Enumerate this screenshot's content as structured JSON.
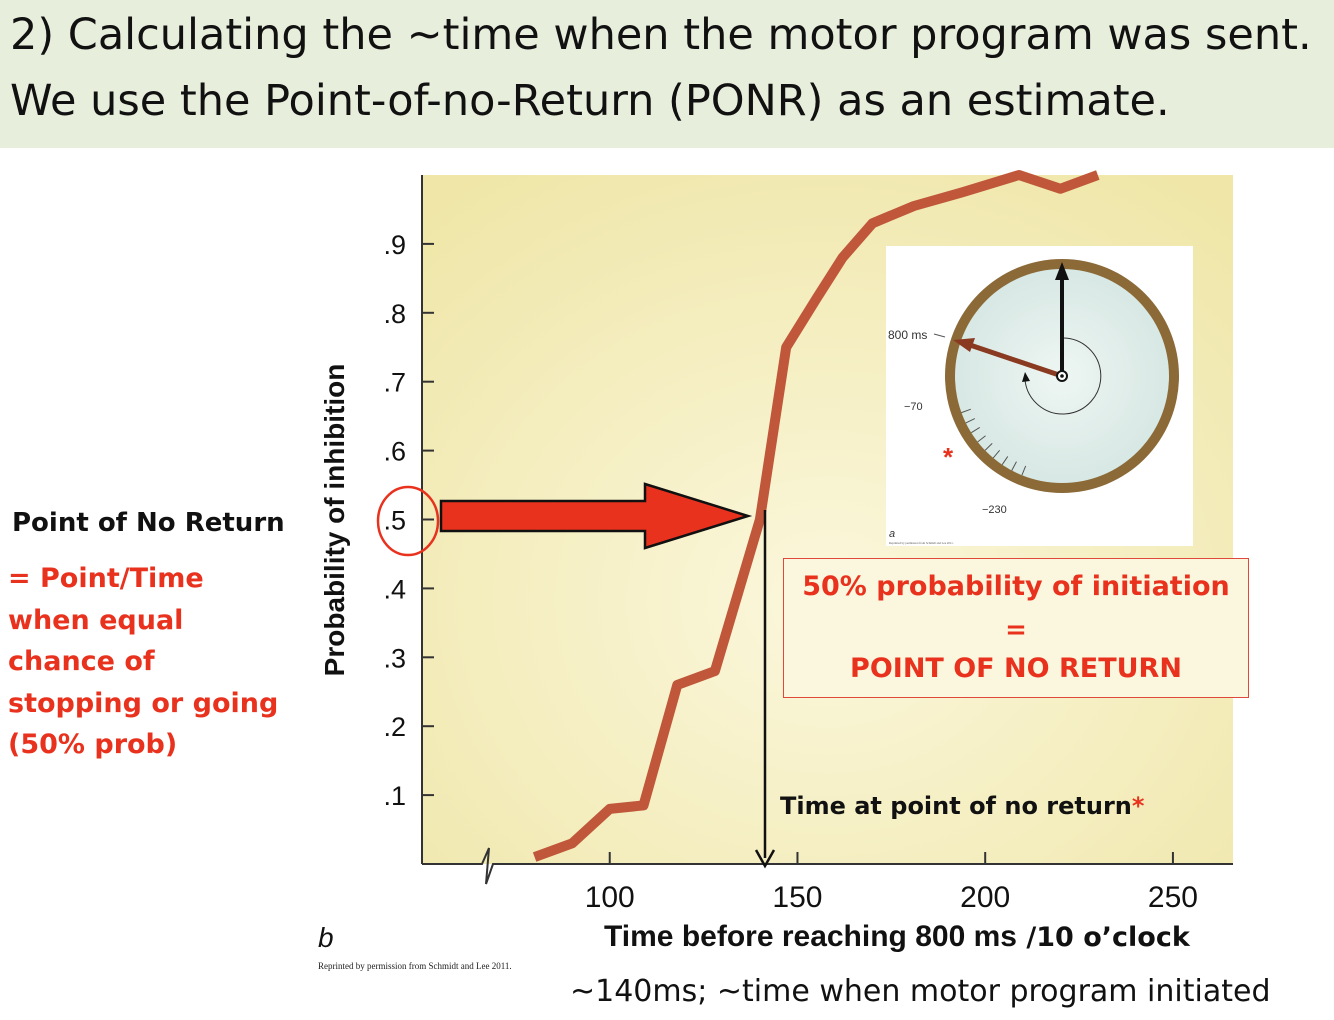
{
  "header": {
    "line1": "2) Calculating the ~time when the motor program was sent.",
    "line2": "We use the Point-of-no-Return (PONR) as an estimate."
  },
  "side_note": {
    "title": "Point of No Return",
    "lines": [
      "= Point/Time",
      "when equal",
      "chance of",
      "stopping or going",
      "(50% prob)"
    ],
    "color": "#e8321e"
  },
  "callout": {
    "line1": "50%  probability of initiation",
    "line2": "=",
    "line3": "POINT OF NO RETURN"
  },
  "ponr_label": {
    "text": "Time at point of no return",
    "star": "*"
  },
  "x_axis_label": {
    "main": "Time before reaching 800 ms",
    "suffix": " /10 o’clock"
  },
  "panel_label": "b",
  "credit": "Reprinted by permission from Schmidt and Lee 2011.",
  "bottom_note": "~140ms; ~time when motor program initiated",
  "inset": {
    "panel_label": "a",
    "label_800": "800 ms",
    "label_70": "−70",
    "label_230": "−230",
    "star": "*",
    "credit": "Reprinted by permission from Schmidt and Lee 2011."
  },
  "colors": {
    "curve": "#c0573a",
    "arrow": "#e8321e",
    "plot_bg_center": "#fbf7dc",
    "plot_bg_edge": "#efe6a8",
    "header_bg": "#e8eedc",
    "clock_rim": "#8b6a38",
    "clock_face": "#d5e6e2"
  },
  "chart_data": {
    "type": "line",
    "xlabel": "Time before reaching 800 ms",
    "ylabel": "Probability of inhibition",
    "x_ticks": [
      100,
      150,
      200,
      250
    ],
    "y_ticks": [
      0.1,
      0.2,
      0.3,
      0.4,
      0.5,
      0.6,
      0.7,
      0.8,
      0.9
    ],
    "y_tick_labels": [
      ".1",
      ".2",
      ".3",
      ".4",
      ".5",
      ".6",
      ".7",
      ".8",
      ".9"
    ],
    "xlim": [
      50,
      266
    ],
    "ylim": [
      0,
      1.0
    ],
    "series": [
      {
        "x": [
          80,
          90,
          100,
          109,
          118,
          128,
          140,
          147,
          155,
          162,
          170,
          181,
          194,
          209,
          220,
          230
        ],
        "y": [
          0.01,
          0.03,
          0.08,
          0.085,
          0.26,
          0.28,
          0.5,
          0.75,
          0.82,
          0.88,
          0.93,
          0.955,
          0.975,
          1.0,
          0.98,
          1.0
        ]
      }
    ],
    "annotations": {
      "ponr_x": 140,
      "ponr_y": 0.5
    }
  }
}
